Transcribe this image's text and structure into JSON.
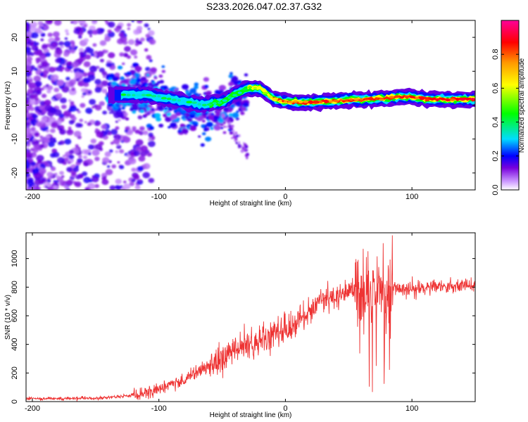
{
  "title": "S233.2026.047.02.37.G32",
  "chart_data": [
    {
      "type": "heatmap",
      "xlabel": "Height of straight line (km)",
      "ylabel": "Frequency (Hz)",
      "xlim": [
        -205,
        150
      ],
      "ylim": [
        -25,
        25
      ],
      "x_ticks": [
        -200,
        -100,
        0,
        100
      ],
      "y_ticks": [
        -20,
        -10,
        0,
        10,
        20
      ],
      "colorbar": {
        "label": "Normalized spectral amplitude",
        "range": [
          0,
          1
        ],
        "ticks": [
          0.0,
          0.2,
          0.4,
          0.6,
          0.8
        ],
        "colors": [
          "#ffffff",
          "#cc99ff",
          "#7700dd",
          "#0000ff",
          "#00ddff",
          "#00ff00",
          "#ffff00",
          "#ff9900",
          "#ff0000",
          "#ff0099"
        ]
      },
      "ridge": {
        "x": [
          -130,
          -110,
          -95,
          -80,
          -65,
          -50,
          -40,
          -30,
          -20,
          -10,
          0,
          10,
          20,
          30,
          40,
          50,
          60,
          70,
          80,
          90,
          100,
          110,
          120,
          130,
          150
        ],
        "frequency": [
          3,
          3,
          2,
          1,
          0,
          1,
          3,
          5,
          5,
          2,
          1,
          0.8,
          0.8,
          1,
          1.3,
          1.5,
          1.6,
          1.8,
          2,
          2.5,
          2.3,
          1.8,
          1.7,
          1.7,
          1.7
        ],
        "amplitude": [
          0.3,
          0.35,
          0.3,
          0.25,
          0.3,
          0.3,
          0.4,
          0.55,
          0.6,
          0.65,
          0.7,
          0.8,
          0.85,
          0.85,
          0.85,
          0.85,
          0.8,
          0.85,
          0.85,
          0.9,
          0.85,
          0.9,
          0.9,
          0.9,
          0.9
        ]
      }
    },
    {
      "type": "line",
      "xlabel": "Height of straight line (km)",
      "ylabel": "SNR (10 * v/v)",
      "xlim": [
        -205,
        150
      ],
      "ylim": [
        0,
        1180
      ],
      "x_ticks": [
        -200,
        -100,
        0,
        100
      ],
      "y_ticks": [
        0,
        200,
        400,
        600,
        800,
        1000
      ],
      "color": "#ee3333",
      "series": [
        {
          "name": "SNR",
          "x": [
            -205,
            -180,
            -150,
            -130,
            -110,
            -100,
            -90,
            -80,
            -70,
            -60,
            -50,
            -40,
            -30,
            -20,
            -10,
            0,
            10,
            20,
            30,
            40,
            50,
            55,
            60,
            65,
            70,
            75,
            80,
            85,
            90,
            100,
            110,
            120,
            130,
            140,
            150
          ],
          "values": [
            20,
            22,
            25,
            35,
            60,
            90,
            120,
            150,
            200,
            260,
            320,
            360,
            380,
            420,
            460,
            500,
            560,
            640,
            700,
            740,
            770,
            790,
            780,
            760,
            720,
            760,
            770,
            790,
            790,
            790,
            795,
            800,
            805,
            810,
            815
          ]
        }
      ]
    }
  ]
}
